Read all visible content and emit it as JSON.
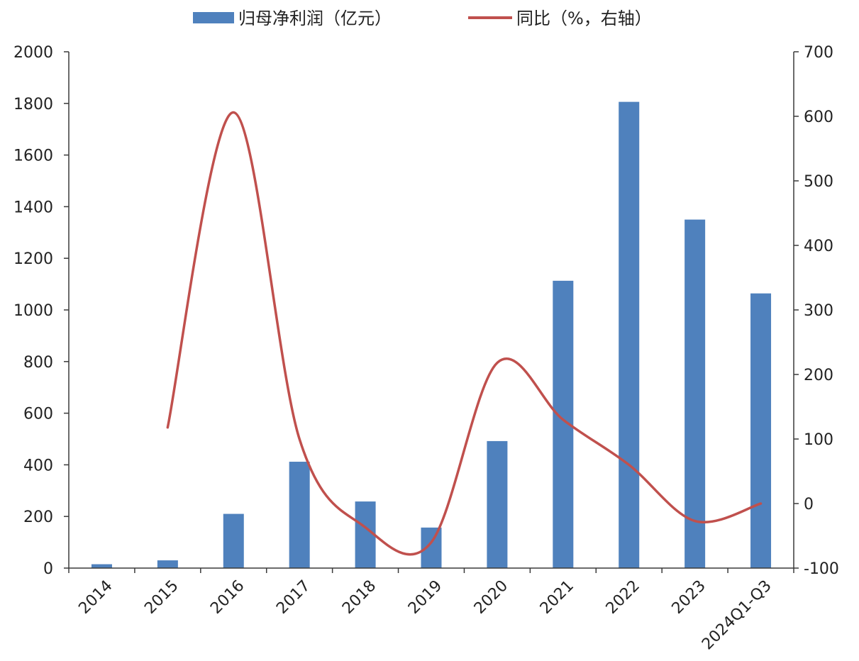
{
  "chart_data": {
    "type": "bar",
    "categories": [
      "2014",
      "2015",
      "2016",
      "2017",
      "2018",
      "2019",
      "2020",
      "2021",
      "2022",
      "2023",
      "2024Q1-Q3"
    ],
    "series": [
      {
        "name": "归母净利润（亿元）",
        "type": "bar",
        "axis": "left",
        "color": "#4f81bd",
        "values": [
          15,
          30,
          210,
          412,
          258,
          157,
          492,
          1113,
          1806,
          1350,
          1064
        ]
      },
      {
        "name": "同比（%，右轴）",
        "type": "line",
        "axis": "right",
        "color": "#c0504d",
        "values": [
          null,
          118,
          606,
          100,
          -37,
          -60,
          218,
          130,
          60,
          -27,
          0
        ]
      }
    ],
    "left_axis": {
      "min": 0,
      "max": 2000,
      "ticks": [
        0,
        200,
        400,
        600,
        800,
        1000,
        1200,
        1400,
        1600,
        1800,
        2000
      ]
    },
    "right_axis": {
      "min": -100,
      "max": 700,
      "ticks": [
        -100,
        0,
        100,
        200,
        300,
        400,
        500,
        600,
        700
      ]
    },
    "legend": "top-center",
    "grid": false,
    "title": "",
    "xlabel": "",
    "ylabel": ""
  }
}
